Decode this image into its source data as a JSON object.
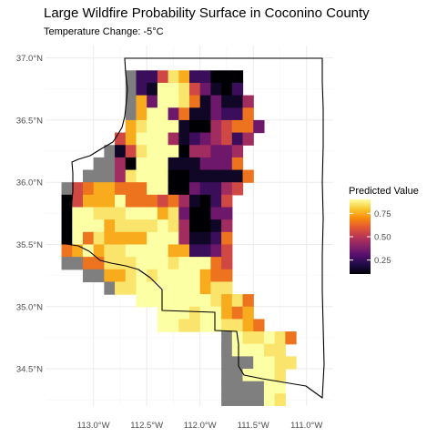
{
  "title": "Large Wildfire Probability Surface in Coconino County",
  "subtitle": "Temperature Change: -5°C",
  "colors": {
    "no_data": "#7f7f7f",
    "boundary": "#000000",
    "grid": "#ebebeb",
    "palette": "inferno"
  },
  "chart_data": {
    "type": "heatmap",
    "title": "Large Wildfire Probability Surface in Coconino County",
    "subtitle": "Temperature Change: -5°C",
    "xlabel": "",
    "ylabel": "",
    "x_range": [
      -113.45,
      -110.75
    ],
    "y_range": [
      34.2,
      37.1
    ],
    "x_ticks": [
      {
        "value": -113.0,
        "label": "113.0°W"
      },
      {
        "value": -112.5,
        "label": "112.5°W"
      },
      {
        "value": -112.0,
        "label": "112.0°W"
      },
      {
        "value": -111.5,
        "label": "111.5°W"
      },
      {
        "value": -111.0,
        "label": "111.0°W"
      }
    ],
    "y_ticks": [
      {
        "value": 37.0,
        "label": "37.0°N"
      },
      {
        "value": 36.5,
        "label": "36.5°N"
      },
      {
        "value": 36.0,
        "label": "36.0°N"
      },
      {
        "value": 35.5,
        "label": "35.5°N"
      },
      {
        "value": 35.0,
        "label": "35.0°N"
      },
      {
        "value": 34.5,
        "label": "34.5°N"
      }
    ],
    "grid": true,
    "cell_degrees": 0.1,
    "grid_origin": {
      "lon": -113.35,
      "lat": 34.25
    },
    "grid_note": "rows listed north to south starting at 37.05°N; columns west to east starting at -113.30°; '.' no cell, 'x' no data (grey), digits 0-9 predicted value in tenths",
    "grid_rows": [
      "......x2258722000",
      "......x2199853102",
      "......x73998613114",
      "......x79936113226",
      "......7899910045663",
      ".....5799941234524",
      "....x158999044334",
      "...xx409991113336",
      "..xxx4899900111116",
      "x5677666990032245",
      "0577796665641025",
      "0998889997830033",
      "0999788889840014",
      "0968777799941126",
      "6797889999772235",
      "xx66888999899965",
      "..xx778989999766",
      "....x88999999788",
      ".......99999998786",
      ".........999899767",
      ".........9988998876",
      "...............x988986",
      "...............x99988",
      "...............xxx9988",
      "...............xx9998",
      "...............xxxx99",
      "...............xxxx98"
    ],
    "legend": {
      "title": "Predicted Value",
      "position": "right",
      "range": [
        0.1,
        0.9
      ],
      "ticks": [
        {
          "value": 0.25,
          "label": "0.25"
        },
        {
          "value": 0.5,
          "label": "0.50"
        },
        {
          "value": 0.75,
          "label": "0.75"
        }
      ]
    }
  }
}
